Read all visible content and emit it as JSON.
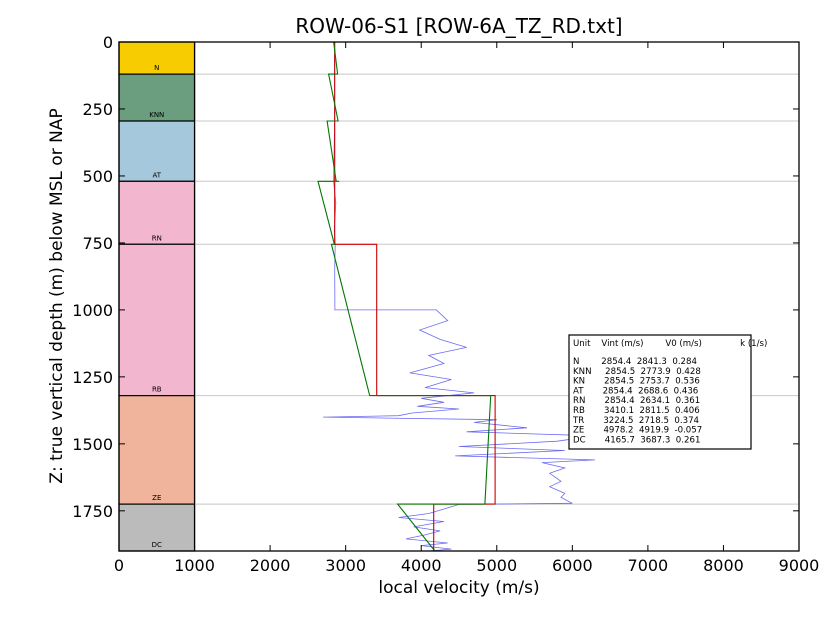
{
  "chart_data": {
    "type": "line",
    "title": "ROW-06-S1 [ROW-6A_TZ_RD.txt]",
    "xlabel": "local velocity (m/s)",
    "ylabel": "Z: true vertical depth (m) below MSL or NAP",
    "xlim": [
      0,
      9000
    ],
    "ylim": [
      1900,
      0
    ],
    "xticks": [
      "0",
      "1000",
      "2000",
      "3000",
      "4000",
      "5000",
      "6000",
      "7000",
      "8000",
      "9000"
    ],
    "yticks": [
      "0",
      "250",
      "500",
      "750",
      "1000",
      "1250",
      "1500",
      "1750"
    ],
    "grid": "horizontal lines at unit boundaries",
    "units": [
      {
        "name": "N",
        "top": 0,
        "bottom": 120,
        "color": "#f7cc00"
      },
      {
        "name": "KNN",
        "top": 120,
        "bottom": 295,
        "color": "#6a9e7f"
      },
      {
        "name": "AT",
        "top": 295,
        "bottom": 520,
        "color": "#a6c8dc"
      },
      {
        "name": "RN",
        "top": 520,
        "bottom": 755,
        "color": "#f3b6cf"
      },
      {
        "name": "RB",
        "top": 755,
        "bottom": 1320,
        "color": "#f3b6cf"
      },
      {
        "name": "ZE",
        "top": 1320,
        "bottom": 1725,
        "color": "#f0b49c"
      },
      {
        "name": "DC",
        "top": 1725,
        "bottom": 1900,
        "color": "#bbbbbb"
      }
    ],
    "series": [
      {
        "color": "#cc0000",
        "x": [
          2854.4,
          2854.4,
          2854.4,
          2854.4,
          2854.4,
          2854.4,
          3410.1,
          3410.1,
          4978.2,
          4978.2,
          4165.7,
          4165.7
        ],
        "y": [
          0,
          120,
          120,
          520,
          520,
          755,
          755,
          1320,
          1320,
          1725,
          1725,
          1900
        ]
      },
      {
        "color": "#007700",
        "x": [
          2841.3,
          2892.6,
          2773.9,
          2900.5,
          2753.7,
          2874.3,
          2688.6,
          2914.8,
          2634.1,
          2850.6,
          2811.5,
          3318.2,
          4919.9,
          4842.7,
          3687.3,
          4180.6
        ],
        "y": [
          0,
          120,
          120,
          295,
          295,
          520,
          520,
          520,
          520,
          755,
          755,
          1320,
          1320,
          1725,
          1725,
          1900
        ]
      },
      {
        "color": "#6b6bf2",
        "x": [
          2854,
          2854,
          2854,
          2840,
          2870,
          2850,
          2862,
          2855,
          2858,
          4200,
          4350,
          3980,
          4250,
          4600,
          4100,
          4300,
          3850,
          4400,
          4050,
          4700,
          4000,
          4300,
          3950,
          4500,
          3880,
          3700,
          2700,
          5000,
          4700,
          5400,
          4600,
          6300,
          5800,
          4500,
          5900,
          4450,
          6300,
          5600,
          5900,
          5700,
          5850,
          5700,
          5900,
          5850,
          6000,
          4500,
          4400,
          4100,
          3700,
          4300,
          3900,
          4250,
          4050,
          3800,
          4350,
          4000,
          4400,
          4100
        ],
        "y": [
          0,
          120,
          300,
          520,
          600,
          700,
          755,
          850,
          1000,
          1000,
          1040,
          1075,
          1110,
          1140,
          1170,
          1200,
          1235,
          1260,
          1290,
          1310,
          1330,
          1345,
          1360,
          1370,
          1385,
          1395,
          1400,
          1410,
          1420,
          1440,
          1455,
          1470,
          1490,
          1510,
          1525,
          1545,
          1560,
          1570,
          1590,
          1610,
          1640,
          1660,
          1685,
          1700,
          1722,
          1726,
          1735,
          1760,
          1775,
          1790,
          1810,
          1825,
          1840,
          1855,
          1870,
          1880,
          1893,
          1900
        ]
      }
    ],
    "legend": {
      "placement": "right",
      "header": "Unit    Vint (m/s)        V0 (m/s)              k (1/s)",
      "rows": [
        "N        2854.4  2841.3  0.284",
        "KNN     2854.5  2773.9  0.428",
        "KN       2854.5  2753.7  0.536",
        "AT       2854.4  2688.6  0.436",
        "RN       2854.4  2634.1  0.361",
        "RB       3410.1  2811.5  0.406",
        "TR       3224.5  2718.5  0.374",
        "ZE       4978.2  4919.9  -0.057",
        "DC       4165.7  3687.3  0.261"
      ]
    }
  }
}
